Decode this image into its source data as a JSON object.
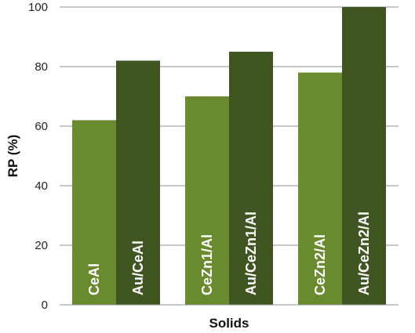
{
  "chart_data": {
    "type": "bar",
    "title": "",
    "xlabel": "Solids",
    "ylabel": "RP (%)",
    "ylim": [
      0,
      100
    ],
    "yticks": [
      0,
      20,
      40,
      60,
      80,
      100
    ],
    "grid": true,
    "legend": "none",
    "groups": [
      {
        "bars": [
          {
            "label": "CeAl",
            "value": 62,
            "color": "#6a8a2f"
          },
          {
            "label": "Au/CeAl",
            "value": 82,
            "color": "#3f5622"
          }
        ]
      },
      {
        "bars": [
          {
            "label": "CeZn1/Al",
            "value": 70,
            "color": "#6a8a2f"
          },
          {
            "label": "Au/CeZn1/Al",
            "value": 85,
            "color": "#3f5622"
          }
        ]
      },
      {
        "bars": [
          {
            "label": "CeZn2/Al",
            "value": 78,
            "color": "#6a8a2f"
          },
          {
            "label": "Au/CeZn2/Al",
            "value": 100,
            "color": "#3f5622"
          }
        ]
      }
    ]
  }
}
